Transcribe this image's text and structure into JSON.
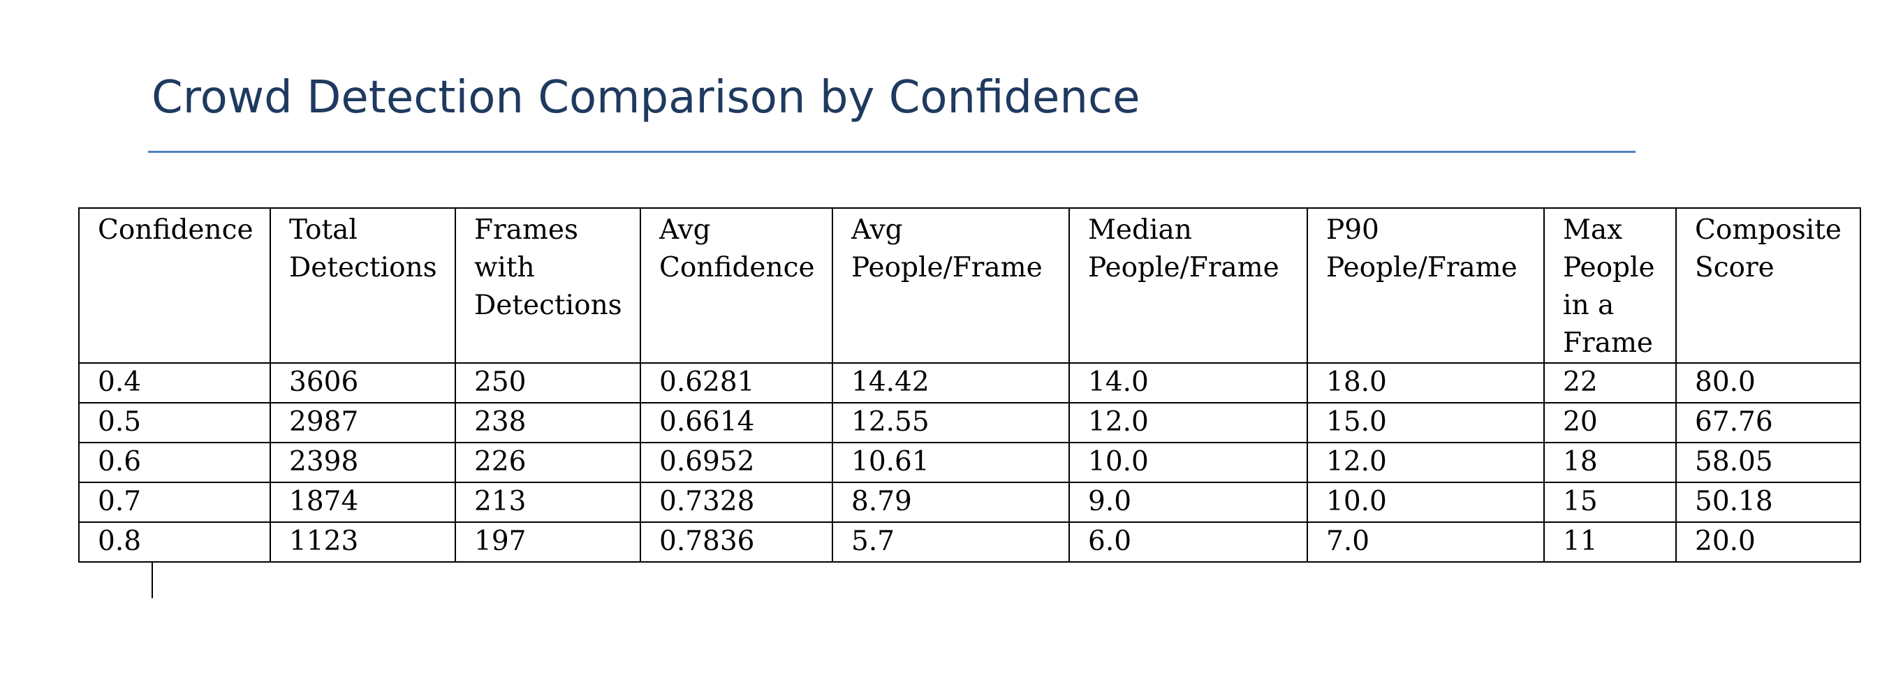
{
  "title": "Crowd Detection Comparison by Confidence",
  "table": {
    "headers": [
      "Confidence",
      "Total Detections",
      "Frames with Detections",
      "Avg Confidence",
      "Avg People/Frame",
      "Median People/Frame",
      "P90 People/Frame",
      "Max People in a Frame",
      "Composite Score"
    ],
    "rows": [
      [
        "0.4",
        "3606",
        "250",
        "0.6281",
        "14.42",
        "14.0",
        "18.0",
        "22",
        "80.0"
      ],
      [
        "0.5",
        "2987",
        "238",
        "0.6614",
        "12.55",
        "12.0",
        "15.0",
        "20",
        "67.76"
      ],
      [
        "0.6",
        "2398",
        "226",
        "0.6952",
        "10.61",
        "10.0",
        "12.0",
        "18",
        "58.05"
      ],
      [
        "0.7",
        "1874",
        "213",
        "0.7328",
        "8.79",
        "9.0",
        "10.0",
        "15",
        "50.18"
      ],
      [
        "0.8",
        "1123",
        "197",
        "0.7836",
        "5.7",
        "6.0",
        "7.0",
        "11",
        "20.0"
      ]
    ]
  },
  "colors": {
    "title": "#1f3a5f",
    "title_rule": "#4f81bd",
    "table_border": "#000000"
  }
}
